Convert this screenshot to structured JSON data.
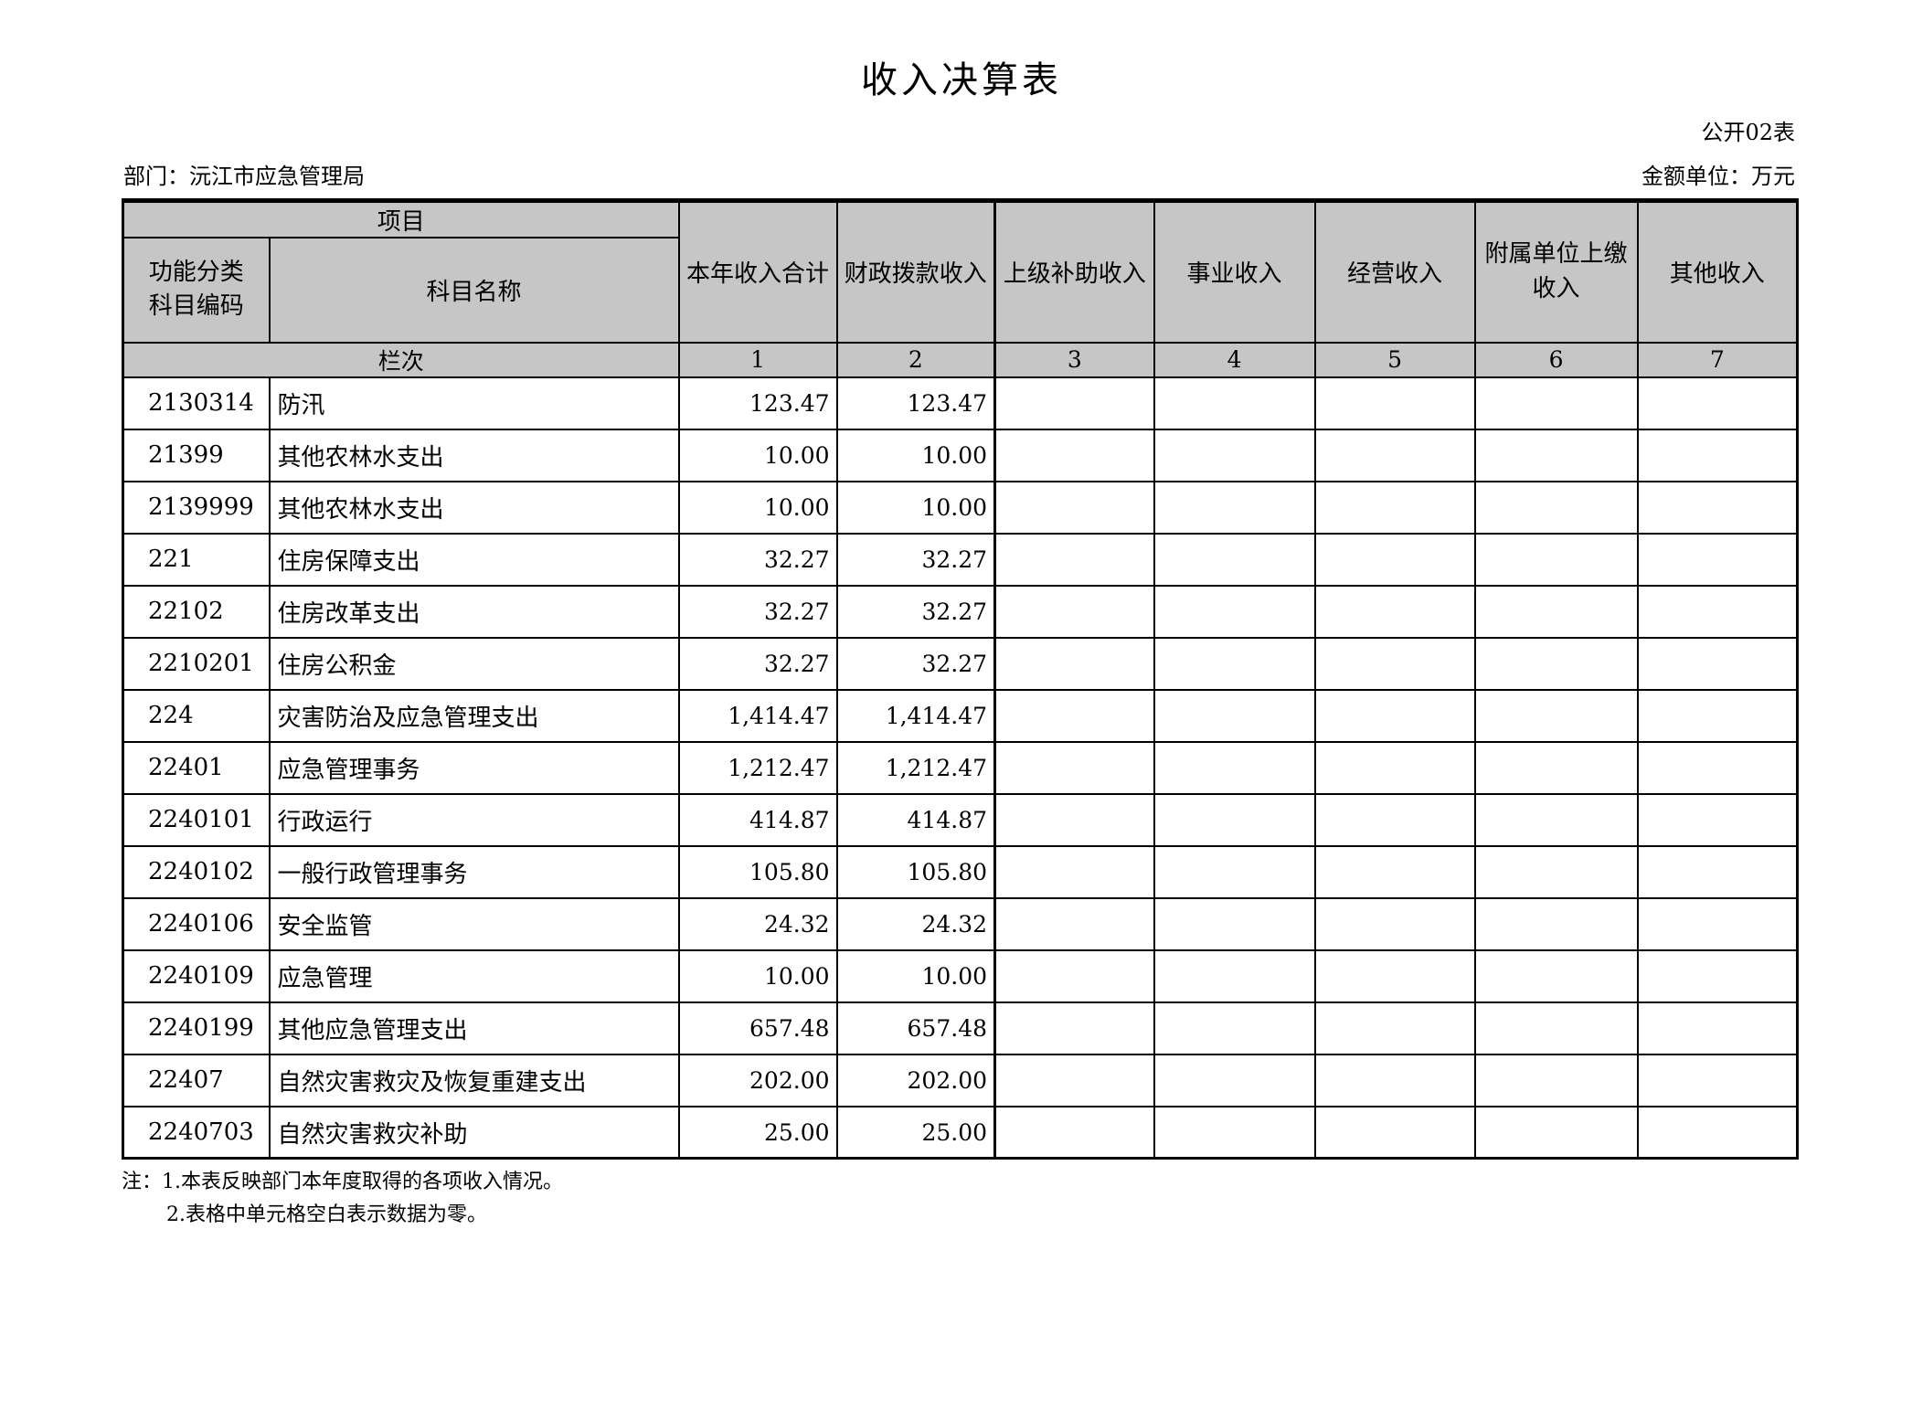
{
  "page": {
    "title": "收入决算表",
    "table_code": "公开02表",
    "department": "部门：沅江市应急管理局",
    "unit": "金额单位：万元"
  },
  "table": {
    "header": {
      "project": "项目",
      "code": "功能分类科目编码",
      "subject": "科目名称",
      "amount_columns": [
        "本年收入合计",
        "财政拨款收入",
        "上级补助收入",
        "事业收入",
        "经营收入",
        "附属单位上缴收入",
        "其他收入"
      ],
      "row_label": "栏次",
      "column_indices": [
        "1",
        "2",
        "3",
        "4",
        "5",
        "6",
        "7"
      ]
    },
    "rows": [
      {
        "code": "2130314",
        "name": "防汛",
        "total": "123.47",
        "fiscal": "123.47",
        "upper": "",
        "business": "",
        "operating": "",
        "affiliated": "",
        "other": ""
      },
      {
        "code": "21399",
        "name": "其他农林水支出",
        "total": "10.00",
        "fiscal": "10.00",
        "upper": "",
        "business": "",
        "operating": "",
        "affiliated": "",
        "other": ""
      },
      {
        "code": "2139999",
        "name": "其他农林水支出",
        "total": "10.00",
        "fiscal": "10.00",
        "upper": "",
        "business": "",
        "operating": "",
        "affiliated": "",
        "other": ""
      },
      {
        "code": "221",
        "name": "住房保障支出",
        "total": "32.27",
        "fiscal": "32.27",
        "upper": "",
        "business": "",
        "operating": "",
        "affiliated": "",
        "other": ""
      },
      {
        "code": "22102",
        "name": "住房改革支出",
        "total": "32.27",
        "fiscal": "32.27",
        "upper": "",
        "business": "",
        "operating": "",
        "affiliated": "",
        "other": ""
      },
      {
        "code": "2210201",
        "name": "住房公积金",
        "total": "32.27",
        "fiscal": "32.27",
        "upper": "",
        "business": "",
        "operating": "",
        "affiliated": "",
        "other": ""
      },
      {
        "code": "224",
        "name": "灾害防治及应急管理支出",
        "total": "1,414.47",
        "fiscal": "1,414.47",
        "upper": "",
        "business": "",
        "operating": "",
        "affiliated": "",
        "other": ""
      },
      {
        "code": "22401",
        "name": "应急管理事务",
        "total": "1,212.47",
        "fiscal": "1,212.47",
        "upper": "",
        "business": "",
        "operating": "",
        "affiliated": "",
        "other": ""
      },
      {
        "code": "2240101",
        "name": "行政运行",
        "total": "414.87",
        "fiscal": "414.87",
        "upper": "",
        "business": "",
        "operating": "",
        "affiliated": "",
        "other": ""
      },
      {
        "code": "2240102",
        "name": "一般行政管理事务",
        "total": "105.80",
        "fiscal": "105.80",
        "upper": "",
        "business": "",
        "operating": "",
        "affiliated": "",
        "other": ""
      },
      {
        "code": "2240106",
        "name": "安全监管",
        "total": "24.32",
        "fiscal": "24.32",
        "upper": "",
        "business": "",
        "operating": "",
        "affiliated": "",
        "other": ""
      },
      {
        "code": "2240109",
        "name": "应急管理",
        "total": "10.00",
        "fiscal": "10.00",
        "upper": "",
        "business": "",
        "operating": "",
        "affiliated": "",
        "other": ""
      },
      {
        "code": "2240199",
        "name": "其他应急管理支出",
        "total": "657.48",
        "fiscal": "657.48",
        "upper": "",
        "business": "",
        "operating": "",
        "affiliated": "",
        "other": ""
      },
      {
        "code": "22407",
        "name": "自然灾害救灾及恢复重建支出",
        "total": "202.00",
        "fiscal": "202.00",
        "upper": "",
        "business": "",
        "operating": "",
        "affiliated": "",
        "other": ""
      },
      {
        "code": "2240703",
        "name": "自然灾害救灾补助",
        "total": "25.00",
        "fiscal": "25.00",
        "upper": "",
        "business": "",
        "operating": "",
        "affiliated": "",
        "other": ""
      }
    ]
  },
  "notes": {
    "line1": "注：1.本表反映部门本年度取得的各项收入情况。",
    "line2": "2.表格中单元格空白表示数据为零。"
  },
  "colors": {
    "header_bg": "#c6c6c6",
    "border": "#000000",
    "text": "#000000",
    "page_bg": "#ffffff"
  }
}
